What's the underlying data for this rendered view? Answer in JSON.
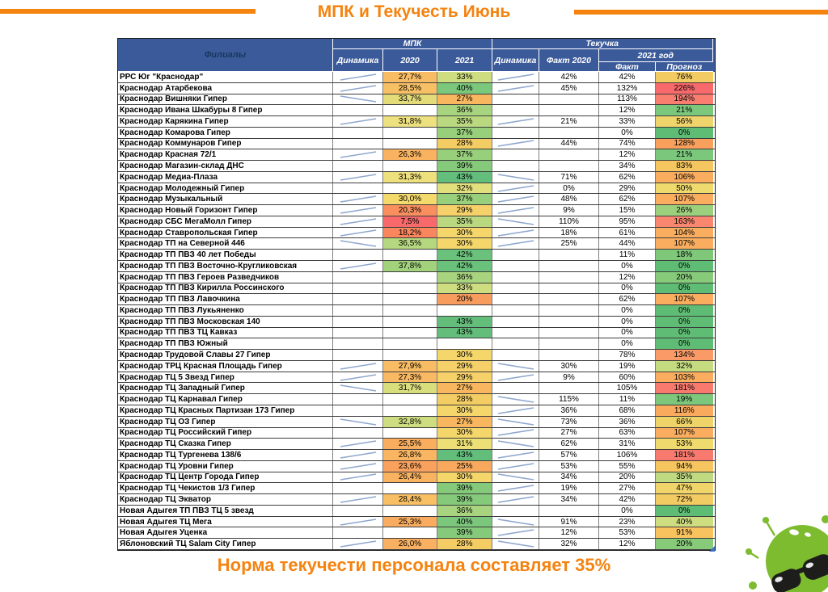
{
  "title": "МПК и Текучесть Июнь",
  "footer": "Норма текучести персонала составляет 35%",
  "colors": {
    "accent_orange": "#F4830F",
    "header_blue": "#3B5A9A",
    "header_branch_text": "#17375D",
    "sparkline": "#8FA8CE",
    "mascot_green": "#7DBB2F",
    "scale_green": "#63BE7B",
    "scale_yellow": "#F4D66B",
    "scale_orange": "#FAAD5E",
    "scale_red": "#F8696B"
  },
  "table": {
    "header": {
      "branch": "Филиалы",
      "group_mpk": "МПК",
      "group_tek": "Текучка",
      "dynamics1": "Динамика",
      "y2020": "2020",
      "y2021": "2021",
      "dynamics2": "Динамика",
      "fact2020": "Факт 2020",
      "group_2021": "2021 год",
      "fact": "Факт",
      "forecast": "Прогноз"
    },
    "rows": [
      {
        "name": "РРС Юг \"Краснодар\"",
        "mpk_dyn": "up",
        "mpk2020": "27,7%",
        "c2020": "#F8BC64",
        "mpk2021": "33%",
        "c2021": "#CEDD80",
        "tek_dyn": "up",
        "fact2020": "42%",
        "fact": "42%",
        "forecast": "76%",
        "cf": "#F3CB63"
      },
      {
        "name": "Краснодар Атарбекова",
        "mpk_dyn": "up",
        "mpk2020": "28,5%",
        "c2020": "#F8C065",
        "mpk2021": "40%",
        "c2021": "#7BC77C",
        "tek_dyn": "up",
        "fact2020": "45%",
        "fact": "132%",
        "forecast": "226%",
        "cf": "#F8696B"
      },
      {
        "name": "Краснодар Вишняки Гипер",
        "mpk_dyn": "down",
        "mpk2020": "33,7%",
        "c2020": "#E3DC79",
        "mpk2021": "27%",
        "c2021": "#F8B75F",
        "tek_dyn": "",
        "fact2020": "",
        "fact": "113%",
        "forecast": "194%",
        "cf": "#F97E70"
      },
      {
        "name": "Краснодар Ивана Шкабуры 8 Гипер",
        "mpk_dyn": "",
        "mpk2020": "",
        "c2020": "",
        "mpk2021": "36%",
        "c2021": "#A8D47F",
        "tek_dyn": "",
        "fact2020": "",
        "fact": "12%",
        "forecast": "21%",
        "cf": "#7BC77C"
      },
      {
        "name": "Краснодар Карякина Гипер",
        "mpk_dyn": "up",
        "mpk2020": "31,8%",
        "c2020": "#EDE07E",
        "mpk2021": "35%",
        "c2021": "#B9D87F",
        "tek_dyn": "up",
        "fact2020": "21%",
        "fact": "33%",
        "forecast": "56%",
        "cf": "#EFD46B"
      },
      {
        "name": "Краснодар Комарова Гипер",
        "mpk_dyn": "",
        "mpk2020": "",
        "c2020": "",
        "mpk2021": "37%",
        "c2021": "#98CF7B",
        "tek_dyn": "",
        "fact2020": "",
        "fact": "0%",
        "forecast": "0%",
        "cf": "#5FBC74"
      },
      {
        "name": "Краснодар Коммунаров Гипер",
        "mpk_dyn": "",
        "mpk2020": "",
        "c2020": "",
        "mpk2021": "28%",
        "c2021": "#F3CC63",
        "tek_dyn": "up",
        "fact2020": "44%",
        "fact": "74%",
        "forecast": "128%",
        "cf": "#F9A15C"
      },
      {
        "name": "Краснодар Красная 72/1",
        "mpk_dyn": "up",
        "mpk2020": "26,3%",
        "c2020": "#F9B360",
        "mpk2021": "37%",
        "c2021": "#98CF7B",
        "tek_dyn": "",
        "fact2020": "",
        "fact": "12%",
        "forecast": "21%",
        "cf": "#7BC77C"
      },
      {
        "name": "Краснодар Магазин-склад ДНС",
        "mpk_dyn": "",
        "mpk2020": "",
        "c2020": "",
        "mpk2021": "39%",
        "c2021": "#85CA7A",
        "tek_dyn": "",
        "fact2020": "",
        "fact": "34%",
        "forecast": "83%",
        "cf": "#F5C660"
      },
      {
        "name": "Краснодар Медиа-Плаза",
        "mpk_dyn": "up",
        "mpk2020": "31,3%",
        "c2020": "#EFE07E",
        "mpk2021": "43%",
        "c2021": "#63BE7B",
        "tek_dyn": "down",
        "fact2020": "71%",
        "fact": "62%",
        "forecast": "106%",
        "cf": "#FAAD5E"
      },
      {
        "name": "Краснодар Молодежный Гипер",
        "mpk_dyn": "",
        "mpk2020": "",
        "c2020": "",
        "mpk2021": "32%",
        "c2021": "#E2DF7D",
        "tek_dyn": "up",
        "fact2020": "0%",
        "fact": "29%",
        "forecast": "50%",
        "cf": "#EFDA6E"
      },
      {
        "name": "Краснодар Музыкальный",
        "mpk_dyn": "up",
        "mpk2020": "30,0%",
        "c2020": "#F4D96C",
        "mpk2021": "37%",
        "c2021": "#98CF7B",
        "tek_dyn": "up",
        "fact2020": "48%",
        "fact": "62%",
        "forecast": "107%",
        "cf": "#FAAD5E"
      },
      {
        "name": "Краснодар Новый Горизонт Гипер",
        "mpk_dyn": "up",
        "mpk2020": "20,3%",
        "c2020": "#F98F5F",
        "mpk2021": "29%",
        "c2021": "#F6D169",
        "tek_dyn": "up",
        "fact2020": "9%",
        "fact": "15%",
        "forecast": "26%",
        "cf": "#9DD07D"
      },
      {
        "name": "Краснодар СБС МегаМолл Гипер",
        "mpk_dyn": "up",
        "mpk2020": "7,5%",
        "c2020": "#F8696B",
        "mpk2021": "35%",
        "c2021": "#B9D87F",
        "tek_dyn": "down",
        "fact2020": "110%",
        "fact": "95%",
        "forecast": "163%",
        "cf": "#F9876F"
      },
      {
        "name": "Краснодар Ставропольская Гипер",
        "mpk_dyn": "up",
        "mpk2020": "18,2%",
        "c2020": "#F9865C",
        "mpk2021": "30%",
        "c2021": "#F4D66B",
        "tek_dyn": "up",
        "fact2020": "18%",
        "fact": "61%",
        "forecast": "104%",
        "cf": "#FAAD5E"
      },
      {
        "name": "Краснодар ТП на Северной 446",
        "mpk_dyn": "down",
        "mpk2020": "36,5%",
        "c2020": "#B5D77F",
        "mpk2021": "30%",
        "c2021": "#F4D66B",
        "tek_dyn": "up",
        "fact2020": "25%",
        "fact": "44%",
        "forecast": "107%",
        "cf": "#FAAD5E"
      },
      {
        "name": "Краснодар ТП ПВЗ 40 лет Победы",
        "mpk_dyn": "",
        "mpk2020": "",
        "c2020": "",
        "mpk2021": "42%",
        "c2021": "#6AC17B",
        "tek_dyn": "",
        "fact2020": "",
        "fact": "11%",
        "forecast": "18%",
        "cf": "#7FC87A"
      },
      {
        "name": "Краснодар ТП ПВЗ Восточно-Кругликовская",
        "mpk_dyn": "up",
        "mpk2020": "37,8%",
        "c2020": "#A2D27C",
        "mpk2021": "42%",
        "c2021": "#6AC17B",
        "tek_dyn": "",
        "fact2020": "",
        "fact": "0%",
        "forecast": "0%",
        "cf": "#5FBC74"
      },
      {
        "name": "Краснодар ТП ПВЗ Героев Разведчиков",
        "mpk_dyn": "",
        "mpk2020": "",
        "c2020": "",
        "mpk2021": "36%",
        "c2021": "#A8D47F",
        "tek_dyn": "",
        "fact2020": "",
        "fact": "12%",
        "forecast": "20%",
        "cf": "#86CA7A"
      },
      {
        "name": "Краснодар ТП ПВЗ Кирилла Россинского",
        "mpk_dyn": "",
        "mpk2020": "",
        "c2020": "",
        "mpk2021": "33%",
        "c2021": "#CEDD80",
        "tek_dyn": "",
        "fact2020": "",
        "fact": "0%",
        "forecast": "0%",
        "cf": "#5FBC74"
      },
      {
        "name": "Краснодар ТП ПВЗ Лавочкина",
        "mpk_dyn": "",
        "mpk2020": "",
        "c2020": "",
        "mpk2021": "20%",
        "c2021": "#F89C5D",
        "tek_dyn": "",
        "fact2020": "",
        "fact": "62%",
        "forecast": "107%",
        "cf": "#FAAD5E"
      },
      {
        "name": "Краснодар ТП ПВЗ Лукьяненко",
        "mpk_dyn": "",
        "mpk2020": "",
        "c2020": "",
        "mpk2021": "",
        "c2021": "",
        "tek_dyn": "",
        "fact2020": "",
        "fact": "0%",
        "forecast": "0%",
        "cf": "#5FBC74"
      },
      {
        "name": "Краснодар ТП ПВЗ Московская 140",
        "mpk_dyn": "",
        "mpk2020": "",
        "c2020": "",
        "mpk2021": "43%",
        "c2021": "#63BE7B",
        "tek_dyn": "",
        "fact2020": "",
        "fact": "0%",
        "forecast": "0%",
        "cf": "#5FBC74"
      },
      {
        "name": "Краснодар ТП ПВЗ ТЦ Кавказ",
        "mpk_dyn": "",
        "mpk2020": "",
        "c2020": "",
        "mpk2021": "43%",
        "c2021": "#63BE7B",
        "tek_dyn": "",
        "fact2020": "",
        "fact": "0%",
        "forecast": "0%",
        "cf": "#5FBC74"
      },
      {
        "name": "Краснодар ТП ПВЗ Южный",
        "mpk_dyn": "",
        "mpk2020": "",
        "c2020": "",
        "mpk2021": "",
        "c2021": "",
        "tek_dyn": "",
        "fact2020": "",
        "fact": "0%",
        "forecast": "0%",
        "cf": "#5FBC74"
      },
      {
        "name": "Краснодар Трудовой Славы 27 Гипер",
        "mpk_dyn": "",
        "mpk2020": "",
        "c2020": "",
        "mpk2021": "30%",
        "c2021": "#F4D66B",
        "tek_dyn": "",
        "fact2020": "",
        "fact": "78%",
        "forecast": "134%",
        "cf": "#F99A67"
      },
      {
        "name": "Краснодар ТРЦ Красная Площадь Гипер",
        "mpk_dyn": "up",
        "mpk2020": "27,9%",
        "c2020": "#F8BC64",
        "mpk2021": "29%",
        "c2021": "#F6D169",
        "tek_dyn": "down",
        "fact2020": "30%",
        "fact": "19%",
        "forecast": "32%",
        "cf": "#C5DB80"
      },
      {
        "name": "Краснодар ТЦ 5 Звезд Гипер",
        "mpk_dyn": "up",
        "mpk2020": "27,3%",
        "c2020": "#F9B863",
        "mpk2021": "29%",
        "c2021": "#F6D169",
        "tek_dyn": "up",
        "fact2020": "9%",
        "fact": "60%",
        "forecast": "103%",
        "cf": "#FAAD5E"
      },
      {
        "name": "Краснодар ТЦ Западный Гипер",
        "mpk_dyn": "down",
        "mpk2020": "31,7%",
        "c2020": "#D9DE7D",
        "mpk2021": "27%",
        "c2021": "#F8B75F",
        "tek_dyn": "",
        "fact2020": "",
        "fact": "105%",
        "forecast": "181%",
        "cf": "#F87A6E"
      },
      {
        "name": "Краснодар ТЦ Карнавал Гипер",
        "mpk_dyn": "",
        "mpk2020": "",
        "c2020": "",
        "mpk2021": "28%",
        "c2021": "#F3CC63",
        "tek_dyn": "down",
        "fact2020": "115%",
        "fact": "11%",
        "forecast": "19%",
        "cf": "#7CC77C"
      },
      {
        "name": "Краснодар ТЦ Красных Партизан 173 Гипер",
        "mpk_dyn": "",
        "mpk2020": "",
        "c2020": "",
        "mpk2021": "30%",
        "c2021": "#F4D66B",
        "tek_dyn": "up",
        "fact2020": "36%",
        "fact": "68%",
        "forecast": "116%",
        "cf": "#FAAA5D"
      },
      {
        "name": "Краснодар ТЦ ОЗ Гипер",
        "mpk_dyn": "down",
        "mpk2020": "32,8%",
        "c2020": "#CEDD80",
        "mpk2021": "27%",
        "c2021": "#F8B75F",
        "tek_dyn": "down",
        "fact2020": "73%",
        "fact": "36%",
        "forecast": "66%",
        "cf": "#EED468"
      },
      {
        "name": "Краснодар ТЦ Российский Гипер",
        "mpk_dyn": "",
        "mpk2020": "",
        "c2020": "",
        "mpk2021": "30%",
        "c2021": "#F4D66B",
        "tek_dyn": "up",
        "fact2020": "27%",
        "fact": "63%",
        "forecast": "107%",
        "cf": "#FAAD5E"
      },
      {
        "name": "Краснодар ТЦ Сказка Гипер",
        "mpk_dyn": "up",
        "mpk2020": "25,5%",
        "c2020": "#F9AD5F",
        "mpk2021": "31%",
        "c2021": "#EBDF75",
        "tek_dyn": "down",
        "fact2020": "62%",
        "fact": "31%",
        "forecast": "53%",
        "cf": "#EFDA6E"
      },
      {
        "name": "Краснодар ТЦ Тургенева 138/6",
        "mpk_dyn": "up",
        "mpk2020": "26,8%",
        "c2020": "#F9B562",
        "mpk2021": "43%",
        "c2021": "#63BE7B",
        "tek_dyn": "up",
        "fact2020": "57%",
        "fact": "106%",
        "forecast": "181%",
        "cf": "#F87A6E"
      },
      {
        "name": "Краснодар ТЦ Уровни Гипер",
        "mpk_dyn": "up",
        "mpk2020": "23,6%",
        "c2020": "#F9A15D",
        "mpk2021": "25%",
        "c2021": "#F8A95E",
        "tek_dyn": "up",
        "fact2020": "53%",
        "fact": "55%",
        "forecast": "94%",
        "cf": "#F6C55F"
      },
      {
        "name": "Краснодар ТЦ Центр Города Гипер",
        "mpk_dyn": "up",
        "mpk2020": "26,4%",
        "c2020": "#F9B260",
        "mpk2021": "30%",
        "c2021": "#F4D66B",
        "tek_dyn": "down",
        "fact2020": "34%",
        "fact": "20%",
        "forecast": "35%",
        "cf": "#C0DA81"
      },
      {
        "name": "Краснодар ТЦ Чекистов 1/3 Гипер",
        "mpk_dyn": "",
        "mpk2020": "",
        "c2020": "",
        "mpk2021": "39%",
        "c2021": "#85CA7A",
        "tek_dyn": "up",
        "fact2020": "19%",
        "fact": "27%",
        "forecast": "47%",
        "cf": "#F1D56A"
      },
      {
        "name": "Краснодар ТЦ Экватор",
        "mpk_dyn": "up",
        "mpk2020": "28,4%",
        "c2020": "#F8BF63",
        "mpk2021": "39%",
        "c2021": "#85CA7A",
        "tek_dyn": "up",
        "fact2020": "34%",
        "fact": "42%",
        "forecast": "72%",
        "cf": "#F3CB63"
      },
      {
        "name": "Новая Адыгея ТП ПВЗ ТЦ 5 звезд",
        "mpk_dyn": "",
        "mpk2020": "",
        "c2020": "",
        "mpk2021": "36%",
        "c2021": "#A8D47F",
        "tek_dyn": "",
        "fact2020": "",
        "fact": "0%",
        "forecast": "0%",
        "cf": "#5FBC74"
      },
      {
        "name": "Новая Адыгея ТЦ Мега",
        "mpk_dyn": "up",
        "mpk2020": "25,3%",
        "c2020": "#F9AC5F",
        "mpk2021": "40%",
        "c2021": "#7BC77C",
        "tek_dyn": "down",
        "fact2020": "91%",
        "fact": "23%",
        "forecast": "40%",
        "cf": "#CEDD80"
      },
      {
        "name": "Новая Адыгея Уценка",
        "mpk_dyn": "",
        "mpk2020": "",
        "c2020": "",
        "mpk2021": "39%",
        "c2021": "#85CA7A",
        "tek_dyn": "up",
        "fact2020": "12%",
        "fact": "53%",
        "forecast": "91%",
        "cf": "#F8C25F"
      },
      {
        "name": "Яблоновский ТЦ Salam City Гипер",
        "mpk_dyn": "up",
        "mpk2020": "26,0%",
        "c2020": "#F9B061",
        "mpk2021": "28%",
        "c2021": "#F3CC63",
        "tek_dyn": "down",
        "fact2020": "32%",
        "fact": "12%",
        "forecast": "20%",
        "cf": "#86CA7A"
      }
    ]
  }
}
